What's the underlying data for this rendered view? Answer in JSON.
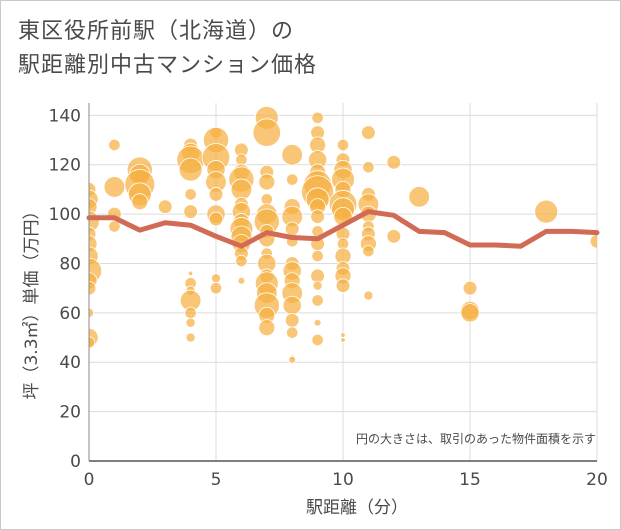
{
  "title": "東区役所前駅（北海道）の\n駅距離別中古マンション価格",
  "chart_data": {
    "type": "scatter",
    "xlabel": "駅距離（分）",
    "ylabel": "坪（3.3㎡）単価（万円）",
    "xlim": [
      0,
      20
    ],
    "ylim": [
      0,
      145
    ],
    "xticks": [
      0,
      5,
      10,
      15,
      20
    ],
    "yticks": [
      0,
      20,
      40,
      60,
      80,
      100,
      120,
      140
    ],
    "grid": true,
    "annotation": "円の大きさは、取引のあった物件面積を示す",
    "bubble_color": "#f5b041",
    "line_color": "#d16b55",
    "bubbles": [
      {
        "x": 0,
        "y": 110,
        "s": 6
      },
      {
        "x": 0,
        "y": 106,
        "s": 8
      },
      {
        "x": 0,
        "y": 103,
        "s": 7
      },
      {
        "x": 0,
        "y": 97,
        "s": 9
      },
      {
        "x": 0,
        "y": 92,
        "s": 6
      },
      {
        "x": 0,
        "y": 88,
        "s": 7
      },
      {
        "x": 0,
        "y": 83,
        "s": 8
      },
      {
        "x": 0,
        "y": 77,
        "s": 11
      },
      {
        "x": 0,
        "y": 73,
        "s": 7
      },
      {
        "x": 0,
        "y": 70,
        "s": 6
      },
      {
        "x": 0,
        "y": 60,
        "s": 4
      },
      {
        "x": 0,
        "y": 50,
        "s": 8
      },
      {
        "x": 0,
        "y": 48,
        "s": 5
      },
      {
        "x": 1,
        "y": 128,
        "s": 5
      },
      {
        "x": 1,
        "y": 111,
        "s": 9
      },
      {
        "x": 1,
        "y": 100,
        "s": 6
      },
      {
        "x": 1,
        "y": 95,
        "s": 5
      },
      {
        "x": 2,
        "y": 118,
        "s": 11
      },
      {
        "x": 2,
        "y": 116,
        "s": 9
      },
      {
        "x": 2,
        "y": 112,
        "s": 13
      },
      {
        "x": 2,
        "y": 108,
        "s": 10
      },
      {
        "x": 2,
        "y": 105,
        "s": 7
      },
      {
        "x": 3,
        "y": 103,
        "s": 6
      },
      {
        "x": 4,
        "y": 128,
        "s": 6
      },
      {
        "x": 4,
        "y": 125,
        "s": 8
      },
      {
        "x": 4,
        "y": 122,
        "s": 12
      },
      {
        "x": 4,
        "y": 118,
        "s": 10
      },
      {
        "x": 4,
        "y": 108,
        "s": 5
      },
      {
        "x": 4,
        "y": 101,
        "s": 6
      },
      {
        "x": 4,
        "y": 76,
        "s": 2
      },
      {
        "x": 4,
        "y": 72,
        "s": 5
      },
      {
        "x": 4,
        "y": 69,
        "s": 4
      },
      {
        "x": 4,
        "y": 65,
        "s": 9
      },
      {
        "x": 4,
        "y": 60,
        "s": 5
      },
      {
        "x": 4,
        "y": 56,
        "s": 4
      },
      {
        "x": 4,
        "y": 50,
        "s": 4
      },
      {
        "x": 5,
        "y": 133,
        "s": 5
      },
      {
        "x": 5,
        "y": 130,
        "s": 11
      },
      {
        "x": 5,
        "y": 123,
        "s": 12
      },
      {
        "x": 5,
        "y": 118,
        "s": 8
      },
      {
        "x": 5,
        "y": 113,
        "s": 9
      },
      {
        "x": 5,
        "y": 108,
        "s": 6
      },
      {
        "x": 5,
        "y": 100,
        "s": 8
      },
      {
        "x": 5,
        "y": 98,
        "s": 6
      },
      {
        "x": 5,
        "y": 74,
        "s": 4
      },
      {
        "x": 5,
        "y": 70,
        "s": 5
      },
      {
        "x": 6,
        "y": 126,
        "s": 6
      },
      {
        "x": 6,
        "y": 122,
        "s": 5
      },
      {
        "x": 6,
        "y": 117,
        "s": 7
      },
      {
        "x": 6,
        "y": 114,
        "s": 11
      },
      {
        "x": 6,
        "y": 110,
        "s": 9
      },
      {
        "x": 6,
        "y": 104,
        "s": 6
      },
      {
        "x": 6,
        "y": 101,
        "s": 8
      },
      {
        "x": 6,
        "y": 97,
        "s": 7
      },
      {
        "x": 6,
        "y": 94,
        "s": 10
      },
      {
        "x": 6,
        "y": 91,
        "s": 9
      },
      {
        "x": 6,
        "y": 88,
        "s": 8
      },
      {
        "x": 6,
        "y": 84,
        "s": 6
      },
      {
        "x": 6,
        "y": 81,
        "s": 5
      },
      {
        "x": 6,
        "y": 73,
        "s": 3
      },
      {
        "x": 7,
        "y": 139,
        "s": 10
      },
      {
        "x": 7,
        "y": 133,
        "s": 12
      },
      {
        "x": 7,
        "y": 117,
        "s": 6
      },
      {
        "x": 7,
        "y": 113,
        "s": 7
      },
      {
        "x": 7,
        "y": 106,
        "s": 5
      },
      {
        "x": 7,
        "y": 100,
        "s": 9
      },
      {
        "x": 7,
        "y": 97,
        "s": 11
      },
      {
        "x": 7,
        "y": 93,
        "s": 6
      },
      {
        "x": 7,
        "y": 90,
        "s": 7
      },
      {
        "x": 7,
        "y": 84,
        "s": 5
      },
      {
        "x": 7,
        "y": 80,
        "s": 8
      },
      {
        "x": 7,
        "y": 75,
        "s": 6
      },
      {
        "x": 7,
        "y": 72,
        "s": 10
      },
      {
        "x": 7,
        "y": 68,
        "s": 9
      },
      {
        "x": 7,
        "y": 63,
        "s": 11
      },
      {
        "x": 7,
        "y": 59,
        "s": 7
      },
      {
        "x": 7,
        "y": 54,
        "s": 7
      },
      {
        "x": 8,
        "y": 124,
        "s": 9
      },
      {
        "x": 8,
        "y": 114,
        "s": 5
      },
      {
        "x": 8,
        "y": 103,
        "s": 7
      },
      {
        "x": 8,
        "y": 99,
        "s": 9
      },
      {
        "x": 8,
        "y": 94,
        "s": 6
      },
      {
        "x": 8,
        "y": 89,
        "s": 5
      },
      {
        "x": 8,
        "y": 80,
        "s": 6
      },
      {
        "x": 8,
        "y": 77,
        "s": 8
      },
      {
        "x": 8,
        "y": 73,
        "s": 7
      },
      {
        "x": 8,
        "y": 68,
        "s": 9
      },
      {
        "x": 8,
        "y": 63,
        "s": 8
      },
      {
        "x": 8,
        "y": 57,
        "s": 6
      },
      {
        "x": 8,
        "y": 52,
        "s": 5
      },
      {
        "x": 8,
        "y": 42,
        "s": 2
      },
      {
        "x": 8,
        "y": 41,
        "s": 3
      },
      {
        "x": 9,
        "y": 139,
        "s": 5
      },
      {
        "x": 9,
        "y": 133,
        "s": 6
      },
      {
        "x": 9,
        "y": 128,
        "s": 7
      },
      {
        "x": 9,
        "y": 122,
        "s": 8
      },
      {
        "x": 9,
        "y": 117,
        "s": 7
      },
      {
        "x": 9,
        "y": 112,
        "s": 12
      },
      {
        "x": 9,
        "y": 109,
        "s": 14
      },
      {
        "x": 9,
        "y": 106,
        "s": 10
      },
      {
        "x": 9,
        "y": 103,
        "s": 7
      },
      {
        "x": 9,
        "y": 99,
        "s": 6
      },
      {
        "x": 9,
        "y": 93,
        "s": 5
      },
      {
        "x": 9,
        "y": 88,
        "s": 6
      },
      {
        "x": 9,
        "y": 83,
        "s": 5
      },
      {
        "x": 9,
        "y": 75,
        "s": 6
      },
      {
        "x": 9,
        "y": 71,
        "s": 4
      },
      {
        "x": 9,
        "y": 65,
        "s": 5
      },
      {
        "x": 9,
        "y": 56,
        "s": 3
      },
      {
        "x": 9,
        "y": 49,
        "s": 5
      },
      {
        "x": 10,
        "y": 128,
        "s": 5
      },
      {
        "x": 10,
        "y": 122,
        "s": 6
      },
      {
        "x": 10,
        "y": 118,
        "s": 8
      },
      {
        "x": 10,
        "y": 114,
        "s": 10
      },
      {
        "x": 10,
        "y": 110,
        "s": 7
      },
      {
        "x": 10,
        "y": 104,
        "s": 12
      },
      {
        "x": 10,
        "y": 102,
        "s": 10
      },
      {
        "x": 10,
        "y": 99,
        "s": 8
      },
      {
        "x": 10,
        "y": 92,
        "s": 6
      },
      {
        "x": 10,
        "y": 88,
        "s": 5
      },
      {
        "x": 10,
        "y": 83,
        "s": 7
      },
      {
        "x": 10,
        "y": 78,
        "s": 6
      },
      {
        "x": 10,
        "y": 75,
        "s": 7
      },
      {
        "x": 10,
        "y": 71,
        "s": 6
      },
      {
        "x": 10,
        "y": 51,
        "s": 2
      },
      {
        "x": 10,
        "y": 49,
        "s": 2
      },
      {
        "x": 11,
        "y": 133,
        "s": 6
      },
      {
        "x": 11,
        "y": 119,
        "s": 5
      },
      {
        "x": 11,
        "y": 108,
        "s": 6
      },
      {
        "x": 11,
        "y": 104,
        "s": 9
      },
      {
        "x": 11,
        "y": 100,
        "s": 7
      },
      {
        "x": 11,
        "y": 95,
        "s": 5
      },
      {
        "x": 11,
        "y": 92,
        "s": 6
      },
      {
        "x": 11,
        "y": 88,
        "s": 7
      },
      {
        "x": 11,
        "y": 85,
        "s": 5
      },
      {
        "x": 11,
        "y": 67,
        "s": 4
      },
      {
        "x": 12,
        "y": 121,
        "s": 6
      },
      {
        "x": 12,
        "y": 91,
        "s": 6
      },
      {
        "x": 13,
        "y": 107,
        "s": 9
      },
      {
        "x": 15,
        "y": 70,
        "s": 6
      },
      {
        "x": 15,
        "y": 61,
        "s": 8
      },
      {
        "x": 15,
        "y": 60,
        "s": 8
      },
      {
        "x": 18,
        "y": 101,
        "s": 10
      },
      {
        "x": 20,
        "y": 89,
        "s": 6
      }
    ],
    "trend_line": {
      "x": [
        0,
        1,
        2,
        3,
        4,
        5,
        6,
        7,
        8,
        9,
        10,
        11,
        12,
        13,
        14,
        15,
        16,
        17,
        18,
        19,
        20
      ],
      "y": [
        98.5,
        98.5,
        93.5,
        96.5,
        95.5,
        91,
        87,
        92.5,
        90.5,
        90,
        95.5,
        101,
        99.5,
        93,
        92.5,
        87.5,
        87.5,
        87,
        93,
        93,
        92.5
      ]
    }
  }
}
